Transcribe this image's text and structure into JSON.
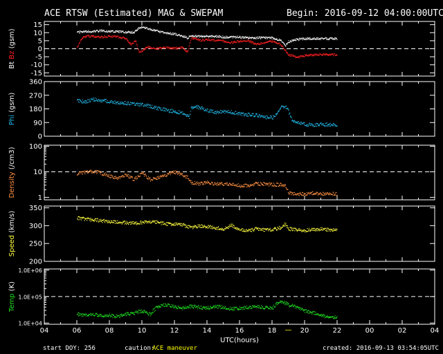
{
  "header": {
    "title": "ACE RTSW (Estimated) MAG & SWEPAM",
    "begin": "Begin: 2016-09-12 04:00:00UTC"
  },
  "footer": {
    "start_doy": "start DOY: 256",
    "caution_label": "caution:",
    "caution_text": "ACE maneuver",
    "created": "created: 2016-09-13 03:54:05UTC"
  },
  "colors": {
    "background": "#000000",
    "axes": "#ffffff",
    "bt": "#ffffff",
    "bz": "#ff2020",
    "phi": "#20b8e8",
    "density": "#ff9040",
    "speed": "#ffff40",
    "temp": "#20e020",
    "caution": "#ffff00"
  },
  "chart_data": [
    {
      "type": "scatter",
      "panel": "mag",
      "ylabel_parts": [
        "Bt",
        "Bz",
        "(gsm)"
      ],
      "yticks": [
        "-15",
        "-10",
        "-5",
        "0",
        "5",
        "10",
        "15"
      ],
      "yticks_minor": [],
      "ylim": [
        -17,
        17
      ],
      "dashed_ref": 0,
      "series": [
        {
          "name": "Bt",
          "color_key": "bt",
          "x": [
            6.0,
            6.5,
            7.0,
            7.5,
            8.0,
            8.5,
            9.0,
            9.5,
            9.8,
            10.0,
            10.3,
            10.5,
            10.8,
            11.0,
            11.5,
            12.0,
            12.5,
            12.8,
            13.0,
            13.5,
            14.0,
            14.5,
            15.0,
            15.5,
            16.0,
            16.5,
            17.0,
            17.5,
            18.0,
            18.5,
            18.8,
            19.0,
            19.5,
            20.0,
            20.5,
            21.0,
            21.5,
            22.0
          ],
          "y": [
            10.5,
            11.0,
            11.0,
            11.5,
            11.0,
            11.0,
            10.5,
            10.5,
            13.0,
            13.5,
            13.0,
            12.5,
            11.5,
            11.0,
            10.0,
            9.5,
            8.0,
            7.0,
            8.5,
            8.0,
            8.0,
            8.0,
            7.5,
            7.5,
            7.5,
            7.0,
            7.0,
            7.0,
            7.0,
            5.5,
            2.0,
            4.5,
            6.0,
            6.5,
            6.5,
            6.5,
            6.5,
            6.5
          ]
        },
        {
          "name": "Bz",
          "color_key": "bz",
          "x": [
            6.0,
            6.3,
            6.6,
            7.0,
            7.5,
            8.0,
            8.5,
            9.0,
            9.3,
            9.6,
            9.8,
            10.0,
            10.3,
            10.6,
            11.0,
            11.5,
            12.0,
            12.5,
            12.8,
            13.0,
            13.3,
            13.6,
            14.0,
            14.5,
            15.0,
            15.5,
            16.0,
            16.5,
            17.0,
            17.5,
            18.0,
            18.5,
            18.8,
            19.0,
            19.3,
            19.6,
            20.0,
            20.5,
            21.0,
            21.5,
            22.0
          ],
          "y": [
            1.0,
            7.0,
            8.0,
            8.0,
            7.5,
            8.0,
            7.5,
            6.5,
            3.0,
            5.0,
            -2.0,
            -1.0,
            1.5,
            0.5,
            0.5,
            1.0,
            0.5,
            1.0,
            -2.0,
            7.0,
            6.5,
            5.5,
            6.0,
            5.5,
            5.0,
            4.0,
            5.0,
            5.5,
            3.0,
            4.0,
            5.0,
            3.0,
            -1.0,
            -3.5,
            -4.5,
            -5.0,
            -4.0,
            -3.5,
            -3.5,
            -3.5,
            -3.5
          ]
        }
      ]
    },
    {
      "type": "scatter",
      "panel": "phi",
      "ylabel_parts": [
        "Phi",
        "(gsm)"
      ],
      "yticks": [
        "0",
        "90",
        "180",
        "270",
        "360"
      ],
      "yticks_minor": [],
      "ylim": [
        0,
        360
      ],
      "dashed_ref": null,
      "series": [
        {
          "name": "Phi",
          "color_key": "phi",
          "x": [
            6.0,
            6.5,
            7.0,
            7.5,
            8.0,
            8.5,
            9.0,
            9.5,
            10.0,
            10.5,
            11.0,
            11.5,
            12.0,
            12.5,
            12.9,
            13.0,
            13.3,
            13.6,
            14.0,
            14.5,
            15.0,
            15.5,
            16.0,
            16.5,
            17.0,
            17.5,
            18.0,
            18.3,
            18.6,
            18.9,
            19.2,
            19.6,
            20.0,
            20.5,
            21.0,
            21.5,
            22.0
          ],
          "y": [
            235,
            230,
            245,
            240,
            230,
            225,
            220,
            215,
            210,
            200,
            185,
            175,
            165,
            155,
            130,
            185,
            195,
            190,
            175,
            160,
            165,
            160,
            150,
            145,
            140,
            130,
            125,
            150,
            200,
            190,
            110,
            90,
            80,
            75,
            80,
            80,
            75
          ]
        }
      ]
    },
    {
      "type": "scatter",
      "panel": "density",
      "ylabel_parts": [
        "Density",
        "(/cm3)"
      ],
      "yscale": "log",
      "yticks": [
        "1",
        "10",
        "100"
      ],
      "yticks_minor": [
        2,
        3,
        4,
        5,
        6,
        7,
        8,
        9,
        20,
        30,
        40,
        50,
        60,
        70,
        80,
        90
      ],
      "ylim": [
        0.8,
        110
      ],
      "dashed_ref": 10,
      "series": [
        {
          "name": "Density",
          "color_key": "density",
          "x": [
            6.0,
            6.5,
            7.0,
            7.5,
            8.0,
            8.5,
            9.0,
            9.5,
            10.0,
            10.5,
            11.0,
            11.5,
            12.0,
            12.5,
            12.8,
            13.0,
            13.5,
            14.0,
            14.5,
            15.0,
            15.5,
            16.0,
            16.5,
            17.0,
            17.5,
            18.0,
            18.5,
            18.8,
            19.0,
            19.5,
            20.0,
            20.5,
            21.0,
            21.5,
            22.0
          ],
          "y": [
            9,
            10,
            11,
            9,
            7,
            6,
            8,
            5,
            9,
            5,
            6,
            8,
            10,
            8,
            6,
            4,
            3.5,
            4,
            3.5,
            3.5,
            3.2,
            3,
            3,
            3.5,
            3.5,
            3.2,
            3.2,
            3,
            1.5,
            1.4,
            1.4,
            1.5,
            1.4,
            1.5,
            1.4
          ]
        }
      ]
    },
    {
      "type": "scatter",
      "panel": "speed",
      "ylabel_parts": [
        "Speed",
        "(km/s)"
      ],
      "yticks": [
        "200",
        "250",
        "300",
        "350"
      ],
      "yticks_minor": [],
      "ylim": [
        200,
        355
      ],
      "dashed_ref": null,
      "series": [
        {
          "name": "Speed",
          "color_key": "speed",
          "x": [
            6.0,
            6.5,
            7.0,
            7.5,
            8.0,
            8.5,
            9.0,
            9.5,
            10.0,
            10.5,
            11.0,
            11.5,
            12.0,
            12.5,
            13.0,
            13.5,
            14.0,
            14.5,
            15.0,
            15.5,
            16.0,
            16.5,
            17.0,
            17.5,
            18.0,
            18.5,
            18.8,
            19.0,
            19.5,
            20.0,
            20.5,
            21.0,
            21.5,
            22.0
          ],
          "y": [
            322,
            320,
            318,
            315,
            312,
            310,
            310,
            308,
            310,
            312,
            310,
            306,
            305,
            303,
            295,
            300,
            298,
            295,
            292,
            302,
            290,
            286,
            292,
            290,
            289,
            296,
            305,
            292,
            290,
            288,
            290,
            292,
            290,
            288
          ]
        }
      ]
    },
    {
      "type": "scatter",
      "panel": "temp",
      "ylabel_parts": [
        "Temp",
        "(K)"
      ],
      "yscale": "log",
      "yticks": [
        "1.0E+04",
        "1.0E+05",
        "1.0E+06"
      ],
      "yticks_minor": [
        20000,
        30000,
        40000,
        50000,
        60000,
        70000,
        80000,
        90000,
        200000,
        300000,
        400000,
        500000,
        600000,
        700000,
        800000,
        900000
      ],
      "ylim": [
        9000,
        1100000
      ],
      "dashed_ref": 100000,
      "series": [
        {
          "name": "Temp",
          "color_key": "temp",
          "x": [
            6.0,
            6.5,
            7.0,
            7.5,
            8.0,
            8.5,
            9.0,
            9.5,
            10.0,
            10.5,
            11.0,
            11.5,
            12.0,
            12.5,
            13.0,
            13.5,
            14.0,
            14.5,
            15.0,
            15.5,
            16.0,
            16.5,
            17.0,
            17.5,
            18.0,
            18.5,
            19.0,
            19.5,
            20.0,
            20.5,
            21.0,
            21.5,
            22.0
          ],
          "y": [
            22000,
            20000,
            22000,
            20000,
            20000,
            18000,
            22000,
            25000,
            30000,
            22000,
            45000,
            50000,
            42000,
            38000,
            45000,
            40000,
            38000,
            45000,
            40000,
            35000,
            38000,
            40000,
            45000,
            40000,
            38000,
            70000,
            50000,
            40000,
            30000,
            25000,
            20000,
            18000,
            17000
          ]
        }
      ]
    }
  ],
  "x_axis": {
    "label": "UTC(hours)",
    "ticks": [
      "04",
      "06",
      "08",
      "10",
      "12",
      "14",
      "16",
      "18",
      "20",
      "22",
      "00",
      "02",
      "04"
    ],
    "hour_range": [
      4,
      28
    ]
  },
  "caution_marks": [
    {
      "x_hour": 19.0,
      "mark": "—"
    }
  ]
}
